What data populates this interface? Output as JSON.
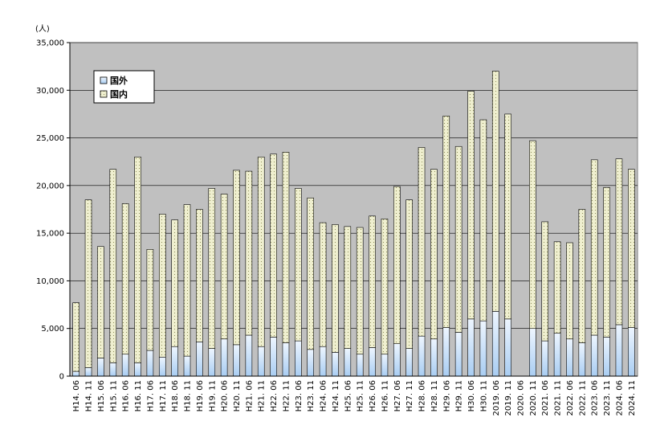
{
  "chart_data": {
    "type": "bar",
    "stacked": true,
    "unit_label": "(人)",
    "ylim": [
      0,
      35000
    ],
    "yticks": [
      "0",
      "5,000",
      "10,000",
      "15,000",
      "20,000",
      "25,000",
      "30,000",
      "35,000"
    ],
    "ytick_values": [
      0,
      5000,
      10000,
      15000,
      20000,
      25000,
      30000,
      35000
    ],
    "grid": true,
    "legend_position": "top-left",
    "colors": {
      "plot_bg": "#c0c0c0",
      "foreign": "#a9cdf2",
      "foreign_top": "#eef6ff",
      "domestic": "#efefcf",
      "dot": "#8c8c5a"
    },
    "categories": [
      "H14. 06",
      "H14. 11",
      "H15. 06",
      "H15. 11",
      "H16. 06",
      "H16. 11",
      "H17. 06",
      "H17. 11",
      "H18. 06",
      "H18. 11",
      "H19. 06",
      "H19. 11",
      "H20. 06",
      "H20. 11",
      "H21. 06",
      "H21. 11",
      "H22. 06",
      "H22. 11",
      "H23. 06",
      "H23. 11",
      "H24. 06",
      "H24. 11",
      "H25. 06",
      "H25. 11",
      "H26. 06",
      "H26. 11",
      "H27. 06",
      "H27. 11",
      "H28. 06",
      "H28. 11",
      "H29. 06",
      "H29. 11",
      "H30. 06",
      "H30. 11",
      "2019. 06",
      "2019. 11",
      "2020. 06",
      "2020. 11",
      "2021. 06",
      "2021. 11",
      "2022. 06",
      "2022. 11",
      "2023. 06",
      "2023. 11",
      "2024. 06",
      "2024. 11"
    ],
    "series": [
      {
        "name": "国外",
        "values": [
          500,
          900,
          1900,
          1400,
          2300,
          1400,
          2700,
          2000,
          3100,
          2100,
          3600,
          2900,
          3900,
          3300,
          4300,
          3100,
          4100,
          3500,
          3700,
          2800,
          3100,
          2500,
          2900,
          2300,
          3000,
          2300,
          3400,
          2900,
          4200,
          3900,
          5100,
          4600,
          6000,
          5800,
          6800,
          6000,
          0,
          5000,
          3700,
          4500,
          3900,
          3500,
          4300,
          4100,
          5400,
          5100
        ]
      },
      {
        "name": "国内",
        "values": [
          7200,
          17600,
          11700,
          20300,
          15800,
          21600,
          10600,
          15000,
          13300,
          15900,
          13900,
          16800,
          15200,
          18300,
          17200,
          19900,
          19200,
          20000,
          16000,
          15900,
          13000,
          13400,
          12800,
          13300,
          13800,
          14200,
          16500,
          15600,
          19800,
          17800,
          22200,
          19500,
          23900,
          21100,
          25200,
          21500,
          0,
          19700,
          12500,
          9600,
          10100,
          14000,
          18400,
          15700,
          17400,
          16600
        ]
      }
    ]
  }
}
